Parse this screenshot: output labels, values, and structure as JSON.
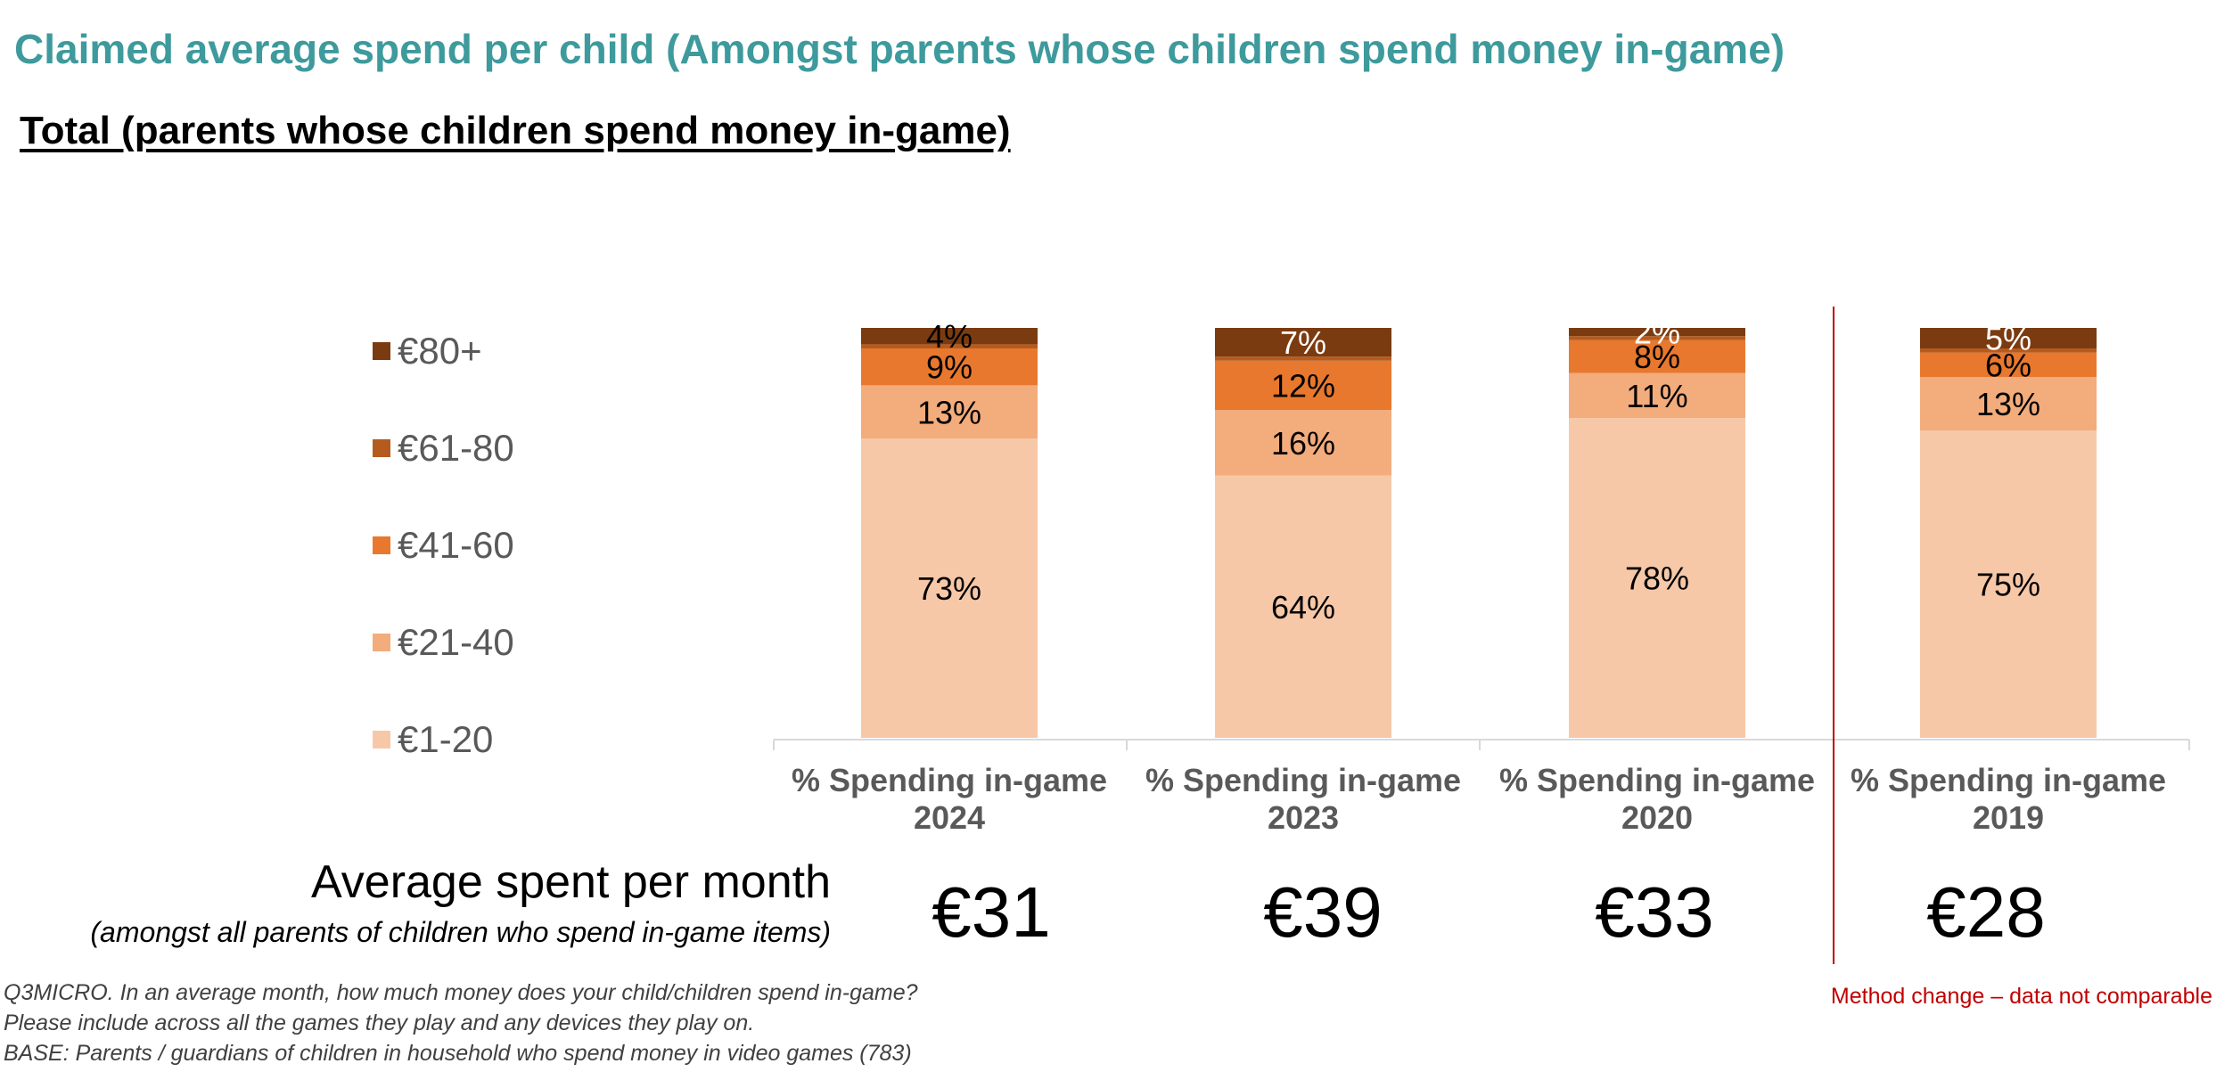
{
  "title": "Claimed average spend per child (Amongst parents whose children spend money in-game)",
  "subtitle": "Total (parents whose children spend money in-game)",
  "chart_data": {
    "type": "bar",
    "stacked": true,
    "categories": [
      "% Spending in-game 2024",
      "% Spending in-game 2023",
      "% Spending in-game 2020",
      "% Spending in-game 2019"
    ],
    "category_lines": [
      [
        "% Spending in-game",
        "2024"
      ],
      [
        "% Spending in-game",
        "2023"
      ],
      [
        "% Spending in-game",
        "2020"
      ],
      [
        "% Spending in-game",
        "2019"
      ]
    ],
    "series": [
      {
        "name": "€1-20",
        "color": "#f7c8a8",
        "values": [
          73,
          64,
          78,
          75
        ],
        "labels": [
          "73%",
          "64%",
          "78%",
          "75%"
        ]
      },
      {
        "name": "€21-40",
        "color": "#f3ac7c",
        "values": [
          13,
          16,
          11,
          13
        ],
        "labels": [
          "13%",
          "16%",
          "11%",
          "13%"
        ]
      },
      {
        "name": "€41-60",
        "color": "#e8782e",
        "values": [
          9,
          12,
          8,
          6
        ],
        "labels": [
          "9%",
          "12%",
          "8%",
          "6%"
        ]
      },
      {
        "name": "€61-80",
        "color": "#b65b1e",
        "values": [
          1,
          1,
          1,
          1
        ],
        "labels": [
          "",
          "",
          "",
          ""
        ]
      },
      {
        "name": "€80+",
        "color": "#7b3b10",
        "values": [
          4,
          7,
          2,
          5
        ],
        "labels": [
          "4%",
          "7%",
          "2%",
          "5%"
        ]
      }
    ],
    "ylim": [
      0,
      100
    ],
    "grid": false,
    "legend_position": "left",
    "divider_before_category": 3
  },
  "average": {
    "title": "Average spent per month",
    "subtitle": "(amongst all parents of children who spend in-game items)",
    "values": [
      "€31",
      "€39",
      "€33",
      "€28"
    ]
  },
  "notes": [
    "Q3MICRO. In an average month, how much money does your child/children spend in-game?",
    "Please include across all the games they play and any devices they play on.",
    "BASE: Parents / guardians of children in household who spend money in video games (783)"
  ],
  "method_note": "Method change – data not comparable",
  "colors": {
    "title": "#3e9a9c",
    "method_note": "#c00000",
    "axis": "#d9d9d9"
  }
}
